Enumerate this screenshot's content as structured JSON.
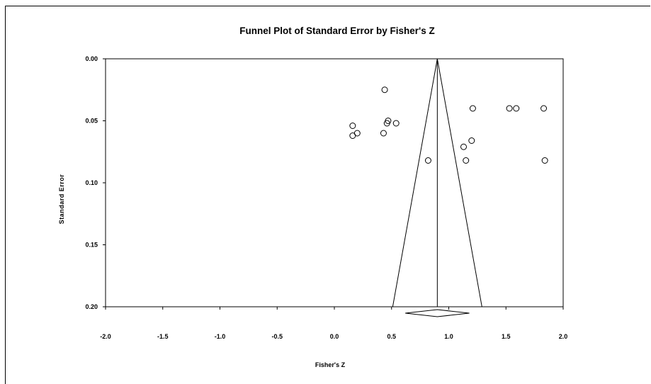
{
  "chart_data": {
    "type": "scatter",
    "title": "Funnel Plot of Standard Error by Fisher's Z",
    "xlabel": "Fisher's Z",
    "ylabel": "Standard Error",
    "xlim": [
      -2.0,
      2.0
    ],
    "ylim": [
      0.0,
      0.2
    ],
    "y_axis_inverted": true,
    "x_ticks": [
      "-2.0",
      "-1.5",
      "-1.0",
      "-0.5",
      "0.0",
      "0.5",
      "1.0",
      "1.5",
      "2.0"
    ],
    "y_ticks": [
      "0.00",
      "0.05",
      "0.10",
      "0.15",
      "0.20"
    ],
    "grid": false,
    "legend": "none",
    "marker": "open-circle",
    "points": [
      {
        "x": 0.44,
        "y": 0.025
      },
      {
        "x": 0.47,
        "y": 0.05
      },
      {
        "x": 0.46,
        "y": 0.052
      },
      {
        "x": 0.54,
        "y": 0.052
      },
      {
        "x": 0.16,
        "y": 0.054
      },
      {
        "x": 0.2,
        "y": 0.06
      },
      {
        "x": 0.43,
        "y": 0.06
      },
      {
        "x": 0.16,
        "y": 0.062
      },
      {
        "x": 0.82,
        "y": 0.082
      },
      {
        "x": 1.13,
        "y": 0.071
      },
      {
        "x": 1.15,
        "y": 0.082
      },
      {
        "x": 1.2,
        "y": 0.066
      },
      {
        "x": 1.21,
        "y": 0.04
      },
      {
        "x": 1.53,
        "y": 0.04
      },
      {
        "x": 1.59,
        "y": 0.04
      },
      {
        "x": 1.83,
        "y": 0.04
      },
      {
        "x": 1.84,
        "y": 0.082
      }
    ],
    "funnel": {
      "apex_x": 0.9,
      "apex_y": 0.0,
      "base_y": 0.2,
      "base_left_x": 0.51,
      "base_right_x": 1.29
    },
    "summary_diamond": {
      "center": 0.9,
      "lower": 0.62,
      "upper": 1.18
    }
  }
}
